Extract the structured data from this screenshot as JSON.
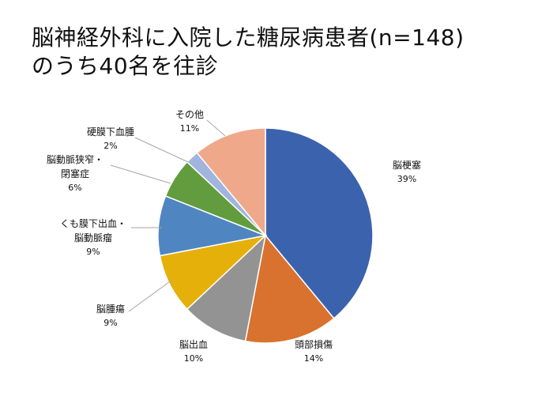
{
  "title": {
    "line1": "脳神経外科に入院した糖尿病患者(n=148)",
    "line2": "のうち40名を往診"
  },
  "chart_data": {
    "type": "pie",
    "start_angle_deg": 0,
    "direction": "clockwise",
    "slices": [
      {
        "label": [
          "脳梗塞"
        ],
        "value": 39,
        "pct_text": "39%",
        "color": "#3b62ad"
      },
      {
        "label": [
          "頭部損傷"
        ],
        "value": 14,
        "pct_text": "14%",
        "color": "#d9722f"
      },
      {
        "label": [
          "脳出血"
        ],
        "value": 10,
        "pct_text": "10%",
        "color": "#939393"
      },
      {
        "label": [
          "脳腫瘍"
        ],
        "value": 9,
        "pct_text": "9%",
        "color": "#e6b00b"
      },
      {
        "label": [
          "くも膜下出血・",
          "脳動脈瘤"
        ],
        "value": 9,
        "pct_text": "9%",
        "color": "#4f86c2"
      },
      {
        "label": [
          "脳動脈狭窄・",
          "閉塞症"
        ],
        "value": 6,
        "pct_text": "6%",
        "color": "#629c3e"
      },
      {
        "label": [
          "硬膜下血腫"
        ],
        "value": 2,
        "pct_text": "2%",
        "color": "#a0b4de"
      },
      {
        "label": [
          "その他"
        ],
        "value": 11,
        "pct_text": "11%",
        "color": "#efa98a"
      }
    ]
  }
}
